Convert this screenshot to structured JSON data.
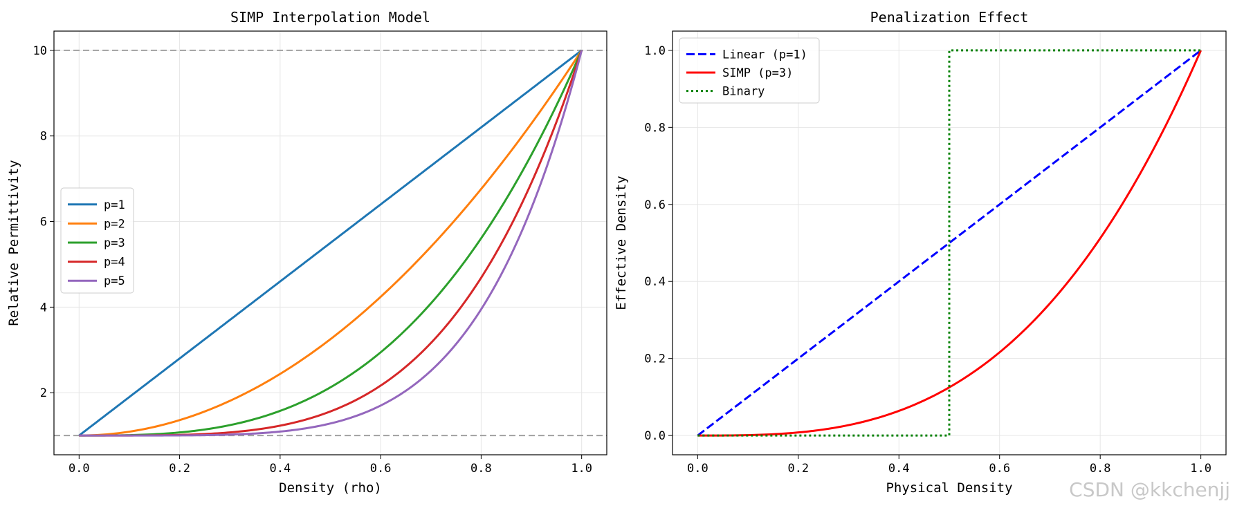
{
  "chart_data": [
    {
      "type": "line",
      "title": "SIMP Interpolation Model",
      "xlabel": "Density (rho)",
      "ylabel": "Relative Permittivity",
      "xlim": [
        -0.05,
        1.05
      ],
      "ylim": [
        0.55,
        10.45
      ],
      "xticks": [
        0.0,
        0.2,
        0.4,
        0.6,
        0.8,
        1.0
      ],
      "yticks": [
        2,
        4,
        6,
        8,
        10
      ],
      "xtick_labels": [
        "0.0",
        "0.2",
        "0.4",
        "0.6",
        "0.8",
        "1.0"
      ],
      "ytick_labels": [
        "2",
        "4",
        "6",
        "8",
        "10"
      ],
      "grid": true,
      "legend_position": "center-left",
      "reference_lines": [
        {
          "y": 1,
          "style": "dashed",
          "color": "#a0a0a0"
        },
        {
          "y": 10,
          "style": "dashed",
          "color": "#a0a0a0"
        }
      ],
      "series": [
        {
          "name": "p=1",
          "label": "p=1",
          "color": "#1f77b4",
          "style": "solid",
          "formula": "1 + 9*rho^1",
          "p": 1
        },
        {
          "name": "p=2",
          "label": "p=2",
          "color": "#ff7f0e",
          "style": "solid",
          "formula": "1 + 9*rho^2",
          "p": 2
        },
        {
          "name": "p=3",
          "label": "p=3",
          "color": "#2ca02c",
          "style": "solid",
          "formula": "1 + 9*rho^3",
          "p": 3
        },
        {
          "name": "p=4",
          "label": "p=4",
          "color": "#d62728",
          "style": "solid",
          "formula": "1 + 9*rho^4",
          "p": 4
        },
        {
          "name": "p=5",
          "label": "p=5",
          "color": "#9467bd",
          "style": "solid",
          "formula": "1 + 9*rho^5",
          "p": 5
        }
      ]
    },
    {
      "type": "line",
      "title": "Penalization Effect",
      "xlabel": "Physical Density",
      "ylabel": "Effective Density",
      "xlim": [
        -0.05,
        1.05
      ],
      "ylim": [
        -0.05,
        1.05
      ],
      "xticks": [
        0.0,
        0.2,
        0.4,
        0.6,
        0.8,
        1.0
      ],
      "yticks": [
        0.0,
        0.2,
        0.4,
        0.6,
        0.8,
        1.0
      ],
      "xtick_labels": [
        "0.0",
        "0.2",
        "0.4",
        "0.6",
        "0.8",
        "1.0"
      ],
      "ytick_labels": [
        "0.0",
        "0.2",
        "0.4",
        "0.6",
        "0.8",
        "1.0"
      ],
      "grid": true,
      "legend_position": "top-left",
      "series": [
        {
          "name": "Linear (p=1)",
          "label": "Linear (p=1)",
          "color": "#0000ff",
          "style": "dashed",
          "formula": "x",
          "p": 1
        },
        {
          "name": "SIMP (p=3)",
          "label": "SIMP (p=3)",
          "color": "#ff0000",
          "style": "solid",
          "formula": "x^3",
          "p": 3
        },
        {
          "name": "Binary",
          "label": "Binary",
          "color": "#008000",
          "style": "dotted",
          "formula": "step at x=0.5",
          "step_at": 0.5
        }
      ]
    }
  ],
  "watermark": "CSDN @kkchenjj"
}
